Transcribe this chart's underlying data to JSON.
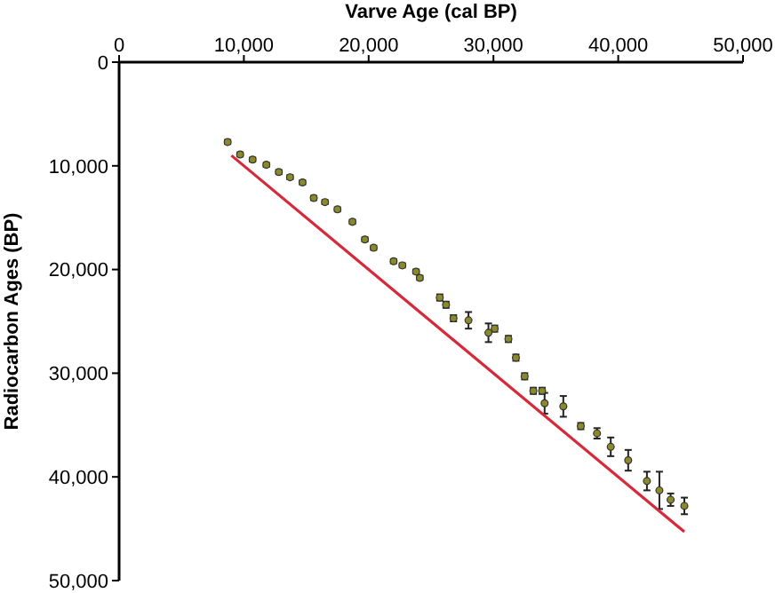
{
  "chart_data": {
    "type": "scatter",
    "xlabel": "Varve Age (cal BP)",
    "ylabel": "Radiocarbon Ages (BP)",
    "xlim": [
      0,
      50000
    ],
    "ylim": [
      50000,
      0
    ],
    "xticks": [
      0,
      {
        "value": 10000,
        "label": "10,000"
      },
      {
        "value": 20000,
        "label": "20,000"
      },
      {
        "value": 30000,
        "label": "30,000"
      },
      {
        "value": 40000,
        "label": "40,000"
      },
      {
        "value": 50000,
        "label": "50,000"
      }
    ],
    "yticks": [
      0,
      {
        "value": 10000,
        "label": "10,000"
      },
      {
        "value": 20000,
        "label": "20,000"
      },
      {
        "value": 30000,
        "label": "30,000"
      },
      {
        "value": 40000,
        "label": "40,000"
      },
      {
        "value": 50000,
        "label": "50,000"
      }
    ],
    "grid": false,
    "series": [
      {
        "marker": "circle",
        "color": "#8a8a2a",
        "x": [
          8700,
          9700,
          10700,
          11800,
          12800,
          13700,
          14700,
          15600,
          16500,
          17500,
          18700,
          19700,
          20400,
          22000,
          22700,
          23800,
          24100,
          25700,
          26200,
          26800,
          28000,
          29600,
          30100,
          31200,
          31800,
          32500,
          33200,
          33900,
          34100,
          35600,
          37000,
          38300,
          39400,
          40800,
          42300,
          43300,
          44200,
          45300
        ],
        "values": [
          7700,
          8900,
          9400,
          9900,
          10600,
          11100,
          11600,
          13100,
          13500,
          14200,
          15400,
          17100,
          17900,
          19200,
          19600,
          20200,
          20800,
          22700,
          23400,
          24700,
          24900,
          26100,
          25700,
          26700,
          28500,
          30300,
          31700,
          31700,
          32900,
          33200,
          35100,
          35800,
          37100,
          38400,
          40400,
          41300,
          42200,
          42800
        ],
        "errors": [
          200,
          200,
          200,
          200,
          200,
          200,
          200,
          200,
          200,
          200,
          200,
          200,
          200,
          200,
          200,
          200,
          200,
          300,
          300,
          300,
          800,
          900,
          300,
          300,
          300,
          300,
          300,
          300,
          1000,
          1000,
          300,
          500,
          900,
          1000,
          900,
          1800,
          600,
          800
        ]
      },
      {
        "type": "line",
        "color": "#d62a3a",
        "x": [
          9000,
          45300
        ],
        "values": [
          9000,
          45300
        ]
      }
    ]
  }
}
